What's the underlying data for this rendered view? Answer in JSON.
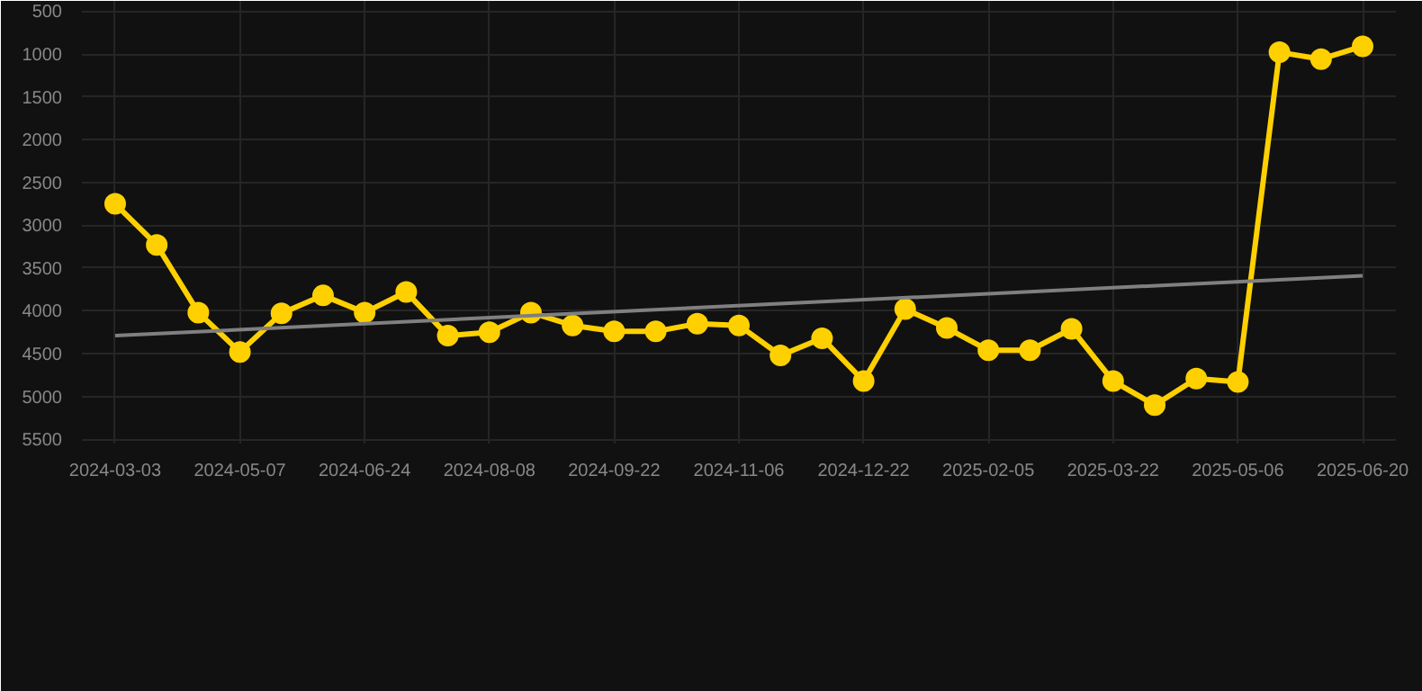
{
  "chart_data": {
    "type": "line",
    "categories": [
      "2024-03-03",
      null,
      null,
      "2024-05-07",
      null,
      null,
      "2024-06-24",
      null,
      null,
      "2024-08-08",
      null,
      null,
      "2024-09-22",
      null,
      null,
      "2024-11-06",
      null,
      null,
      "2024-12-22",
      null,
      null,
      "2025-02-05",
      null,
      null,
      "2025-03-22",
      null,
      null,
      "2025-05-06",
      null,
      null,
      "2025-06-20"
    ],
    "series": [
      {
        "color": "#ffd000",
        "marker": "circle",
        "values": [
          2750,
          3230,
          4020,
          4480,
          4030,
          3820,
          4020,
          3780,
          4290,
          4250,
          4020,
          4170,
          4240,
          4240,
          4150,
          4170,
          4520,
          4320,
          4820,
          3980,
          4200,
          4460,
          4460,
          4210,
          4820,
          5100,
          4790,
          4830,
          980,
          1060,
          910
        ]
      },
      {
        "type": "line",
        "color": "#808080",
        "marker": "none",
        "values": [
          4290,
          null,
          null,
          null,
          null,
          null,
          null,
          null,
          null,
          null,
          null,
          null,
          null,
          null,
          null,
          null,
          null,
          null,
          null,
          null,
          null,
          null,
          null,
          null,
          null,
          null,
          null,
          null,
          null,
          null,
          3590
        ]
      }
    ],
    "ylim": [
      5550,
      380
    ],
    "yticks": [
      500,
      1000,
      1500,
      2000,
      2500,
      3000,
      3500,
      4000,
      4500,
      5000,
      5500
    ],
    "grid": true
  }
}
